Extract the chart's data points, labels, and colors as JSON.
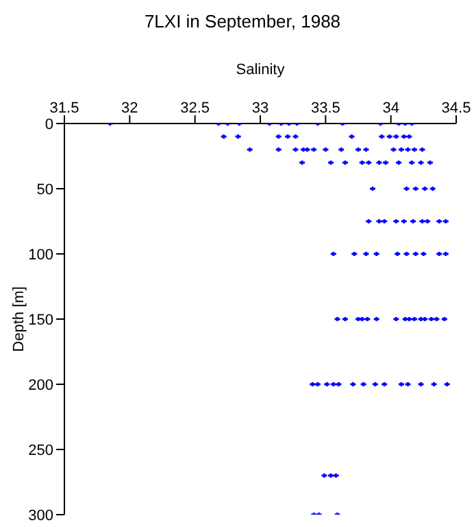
{
  "chart_data": {
    "type": "scatter",
    "title": "7LXI in September, 1988",
    "xlabel": "Salinity",
    "ylabel": "Depth [m]",
    "xlim": [
      31.5,
      34.5
    ],
    "xticks": [
      31.5,
      32,
      32.5,
      33,
      33.5,
      34,
      34.5
    ],
    "ylim": [
      300,
      0
    ],
    "yticks": [
      0,
      50,
      100,
      150,
      200,
      250,
      300
    ],
    "grid": false,
    "legend": false,
    "marker": "cross",
    "series": [
      {
        "color": "#0000ff",
        "x": [
          31.85,
          32.68,
          32.75,
          32.84,
          33.07,
          33.16,
          33.22,
          33.28,
          33.44,
          33.63,
          33.92,
          34.06,
          34.11,
          34.16,
          32.72,
          32.83,
          33.14,
          33.21,
          33.27,
          33.7,
          33.93,
          33.99,
          34.04,
          34.1,
          34.14,
          32.92,
          33.14,
          33.27,
          33.33,
          33.36,
          33.41,
          33.5,
          33.62,
          33.75,
          33.81,
          34.02,
          34.08,
          34.13,
          34.18,
          34.24,
          33.32,
          33.54,
          33.65,
          33.78,
          33.83,
          33.91,
          33.96,
          34.06,
          34.16,
          34.23,
          34.3,
          33.86,
          34.12,
          34.19,
          34.26,
          34.32,
          33.83,
          33.91,
          33.95,
          34.04,
          34.1,
          34.17,
          34.24,
          34.28,
          34.37,
          34.42,
          33.56,
          33.72,
          33.81,
          33.89,
          34.05,
          34.12,
          34.19,
          34.25,
          34.37,
          34.42,
          33.59,
          33.65,
          33.75,
          33.78,
          33.82,
          33.89,
          34.04,
          34.11,
          34.14,
          34.18,
          34.23,
          34.26,
          34.31,
          34.35,
          34.41,
          33.4,
          33.44,
          33.51,
          33.56,
          33.6,
          33.71,
          33.79,
          33.88,
          33.95,
          34.08,
          34.13,
          34.23,
          34.33,
          34.43,
          33.49,
          33.54,
          33.58,
          33.41,
          33.45,
          33.59
        ],
        "values": [
          0,
          0,
          0,
          0,
          0,
          0,
          0,
          0,
          0,
          0,
          0,
          0,
          0,
          0,
          10,
          10,
          10,
          10,
          10,
          10,
          10,
          10,
          10,
          10,
          10,
          20,
          20,
          20,
          20,
          20,
          20,
          20,
          20,
          20,
          20,
          20,
          20,
          20,
          20,
          20,
          30,
          30,
          30,
          30,
          30,
          30,
          30,
          30,
          30,
          30,
          30,
          50,
          50,
          50,
          50,
          50,
          75,
          75,
          75,
          75,
          75,
          75,
          75,
          75,
          75,
          75,
          100,
          100,
          100,
          100,
          100,
          100,
          100,
          100,
          100,
          100,
          150,
          150,
          150,
          150,
          150,
          150,
          150,
          150,
          150,
          150,
          150,
          150,
          150,
          150,
          150,
          200,
          200,
          200,
          200,
          200,
          200,
          200,
          200,
          200,
          200,
          200,
          200,
          200,
          200,
          270,
          270,
          270,
          300,
          300,
          300
        ]
      }
    ]
  }
}
